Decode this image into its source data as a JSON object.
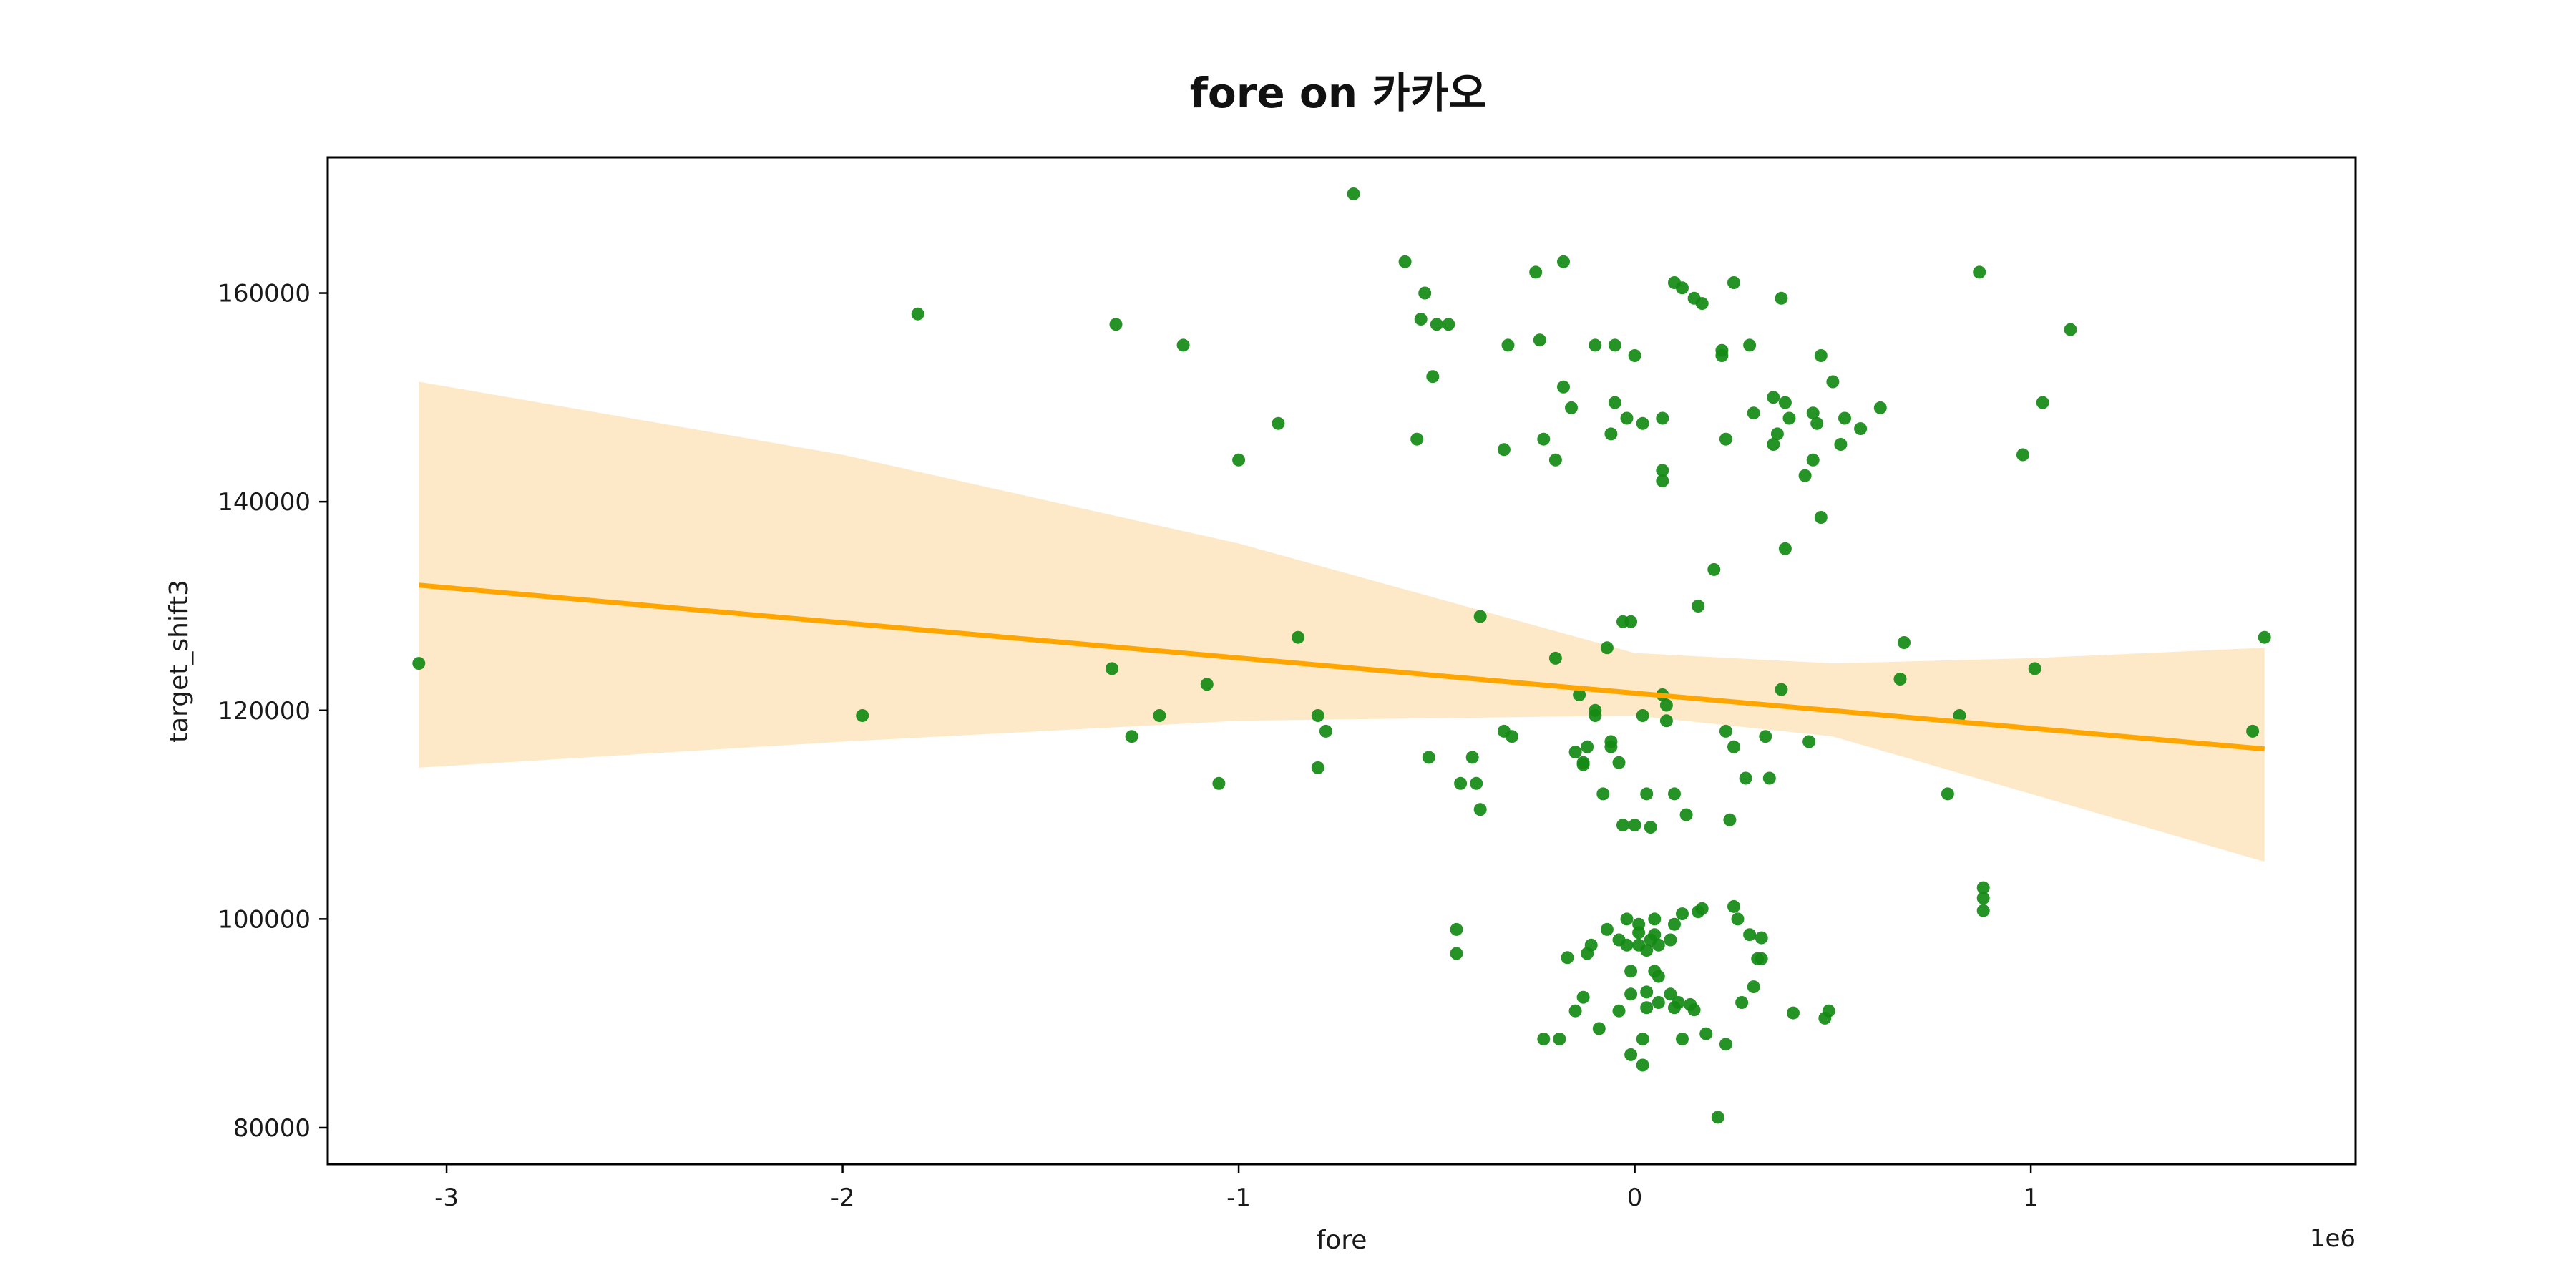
{
  "chart_data": {
    "type": "scatter",
    "title": "fore on 카카오",
    "xlabel": "fore",
    "ylabel": "target_shift3",
    "x_offset_text": "1e6",
    "xlim": [
      -3.3,
      1.82
    ],
    "ylim": [
      76500,
      173000
    ],
    "x_ticks": [
      -3,
      -2,
      -1,
      0,
      1
    ],
    "x_tick_labels": [
      "-3",
      "-2",
      "-1",
      "0",
      "1"
    ],
    "y_ticks": [
      80000,
      100000,
      120000,
      140000,
      160000
    ],
    "y_tick_labels": [
      "80000",
      "100000",
      "120000",
      "140000",
      "160000"
    ],
    "grid": false,
    "legend": "none",
    "colors": {
      "points": "#138a13",
      "line": "#ffa500",
      "band": "#fde9c8"
    },
    "regression": {
      "x": [
        -3.07,
        1.59
      ],
      "y": [
        132000,
        116300
      ],
      "ci_upper": [
        [
          -3.07,
          151500
        ],
        [
          -2.0,
          144500
        ],
        [
          -1.0,
          136000
        ],
        [
          0.0,
          125500
        ],
        [
          0.5,
          124500
        ],
        [
          1.0,
          125000
        ],
        [
          1.59,
          126000
        ]
      ],
      "ci_lower": [
        [
          -3.07,
          114500
        ],
        [
          -2.0,
          117000
        ],
        [
          -1.0,
          119000
        ],
        [
          0.0,
          119500
        ],
        [
          0.5,
          117500
        ],
        [
          1.0,
          112000
        ],
        [
          1.59,
          105500
        ]
      ]
    },
    "series": [
      {
        "points": [
          [
            -3.07,
            124500
          ],
          [
            -1.95,
            119500
          ],
          [
            -1.81,
            158000
          ],
          [
            -1.32,
            124000
          ],
          [
            -1.31,
            157000
          ],
          [
            -1.27,
            117500
          ],
          [
            -1.2,
            119500
          ],
          [
            -1.14,
            155000
          ],
          [
            -1.08,
            122500
          ],
          [
            -1.05,
            113000
          ],
          [
            -1.0,
            144000
          ],
          [
            -0.9,
            147500
          ],
          [
            -0.85,
            127000
          ],
          [
            -0.8,
            119500
          ],
          [
            -0.8,
            114500
          ],
          [
            -0.78,
            118000
          ],
          [
            -0.71,
            169500
          ],
          [
            -0.58,
            163000
          ],
          [
            -0.55,
            146000
          ],
          [
            -0.54,
            157500
          ],
          [
            -0.53,
            160000
          ],
          [
            -0.52,
            115500
          ],
          [
            -0.51,
            152000
          ],
          [
            -0.5,
            157000
          ],
          [
            -0.47,
            157000
          ],
          [
            -0.45,
            99000
          ],
          [
            -0.45,
            96700
          ],
          [
            -0.44,
            113000
          ],
          [
            -0.41,
            115500
          ],
          [
            -0.4,
            113000
          ],
          [
            -0.39,
            110500
          ],
          [
            -0.39,
            129000
          ],
          [
            -0.33,
            145000
          ],
          [
            -0.32,
            155000
          ],
          [
            -0.33,
            118000
          ],
          [
            -0.31,
            117500
          ],
          [
            -0.25,
            162000
          ],
          [
            -0.24,
            155500
          ],
          [
            -0.23,
            146000
          ],
          [
            -0.23,
            88500
          ],
          [
            -0.2,
            125000
          ],
          [
            -0.2,
            144000
          ],
          [
            -0.18,
            163000
          ],
          [
            -0.18,
            151000
          ],
          [
            -0.19,
            88500
          ],
          [
            -0.16,
            149000
          ],
          [
            -0.17,
            96300
          ],
          [
            -0.15,
            91200
          ],
          [
            -0.14,
            121500
          ],
          [
            -0.15,
            116000
          ],
          [
            -0.13,
            115000
          ],
          [
            -0.13,
            92500
          ],
          [
            -0.12,
            96700
          ],
          [
            -0.11,
            97500
          ],
          [
            -0.13,
            114800
          ],
          [
            -0.12,
            116500
          ],
          [
            -0.1,
            119500
          ],
          [
            -0.1,
            120000
          ],
          [
            -0.1,
            155000
          ],
          [
            -0.09,
            89500
          ],
          [
            -0.08,
            112000
          ],
          [
            -0.07,
            126000
          ],
          [
            -0.07,
            99000
          ],
          [
            -0.06,
            116500
          ],
          [
            -0.06,
            117000
          ],
          [
            -0.06,
            146500
          ],
          [
            -0.05,
            155000
          ],
          [
            -0.05,
            149500
          ],
          [
            -0.04,
            98000
          ],
          [
            -0.04,
            91200
          ],
          [
            -0.04,
            115000
          ],
          [
            -0.03,
            109000
          ],
          [
            -0.03,
            128500
          ],
          [
            -0.02,
            100000
          ],
          [
            -0.02,
            97500
          ],
          [
            -0.02,
            148000
          ],
          [
            -0.01,
            128500
          ],
          [
            -0.01,
            87000
          ],
          [
            -0.01,
            92800
          ],
          [
            -0.01,
            95000
          ],
          [
            0.0,
            154000
          ],
          [
            0.0,
            109000
          ],
          [
            0.01,
            98700
          ],
          [
            0.01,
            99500
          ],
          [
            0.01,
            97500
          ],
          [
            0.02,
            147500
          ],
          [
            0.02,
            119500
          ],
          [
            0.02,
            88500
          ],
          [
            0.02,
            86000
          ],
          [
            0.03,
            97000
          ],
          [
            0.03,
            93000
          ],
          [
            0.03,
            91500
          ],
          [
            0.03,
            112000
          ],
          [
            0.04,
            108800
          ],
          [
            0.04,
            98000
          ],
          [
            0.05,
            100000
          ],
          [
            0.05,
            95000
          ],
          [
            0.05,
            98500
          ],
          [
            0.06,
            94500
          ],
          [
            0.06,
            92000
          ],
          [
            0.06,
            97500
          ],
          [
            0.07,
            121500
          ],
          [
            0.07,
            148000
          ],
          [
            0.07,
            142000
          ],
          [
            0.07,
            143000
          ],
          [
            0.08,
            120500
          ],
          [
            0.08,
            119000
          ],
          [
            0.09,
            92800
          ],
          [
            0.09,
            98000
          ],
          [
            0.1,
            112000
          ],
          [
            0.1,
            99500
          ],
          [
            0.1,
            161000
          ],
          [
            0.1,
            91500
          ],
          [
            0.11,
            92000
          ],
          [
            0.12,
            100500
          ],
          [
            0.12,
            88500
          ],
          [
            0.12,
            160500
          ],
          [
            0.13,
            110000
          ],
          [
            0.14,
            91800
          ],
          [
            0.15,
            91300
          ],
          [
            0.15,
            159500
          ],
          [
            0.16,
            100700
          ],
          [
            0.16,
            130000
          ],
          [
            0.17,
            159000
          ],
          [
            0.17,
            101000
          ],
          [
            0.18,
            89000
          ],
          [
            0.2,
            133500
          ],
          [
            0.21,
            81000
          ],
          [
            0.22,
            154500
          ],
          [
            0.22,
            154000
          ],
          [
            0.23,
            146000
          ],
          [
            0.23,
            88000
          ],
          [
            0.23,
            118000
          ],
          [
            0.24,
            109500
          ],
          [
            0.25,
            116500
          ],
          [
            0.25,
            161000
          ],
          [
            0.25,
            101200
          ],
          [
            0.26,
            100000
          ],
          [
            0.27,
            92000
          ],
          [
            0.28,
            113500
          ],
          [
            0.29,
            155000
          ],
          [
            0.29,
            98500
          ],
          [
            0.3,
            93500
          ],
          [
            0.3,
            148500
          ],
          [
            0.31,
            96200
          ],
          [
            0.32,
            98200
          ],
          [
            0.32,
            96200
          ],
          [
            0.33,
            117500
          ],
          [
            0.34,
            113500
          ],
          [
            0.35,
            150000
          ],
          [
            0.35,
            145500
          ],
          [
            0.36,
            146500
          ],
          [
            0.37,
            122000
          ],
          [
            0.37,
            159500
          ],
          [
            0.38,
            135500
          ],
          [
            0.38,
            149500
          ],
          [
            0.39,
            148000
          ],
          [
            0.4,
            91000
          ],
          [
            0.43,
            142500
          ],
          [
            0.44,
            117000
          ],
          [
            0.45,
            148500
          ],
          [
            0.45,
            144000
          ],
          [
            0.46,
            147500
          ],
          [
            0.47,
            138500
          ],
          [
            0.47,
            154000
          ],
          [
            0.48,
            90500
          ],
          [
            0.49,
            91200
          ],
          [
            0.5,
            151500
          ],
          [
            0.52,
            145500
          ],
          [
            0.53,
            148000
          ],
          [
            0.57,
            147000
          ],
          [
            0.62,
            149000
          ],
          [
            0.67,
            123000
          ],
          [
            0.68,
            126500
          ],
          [
            0.79,
            112000
          ],
          [
            0.82,
            119500
          ],
          [
            0.87,
            162000
          ],
          [
            0.88,
            103000
          ],
          [
            0.88,
            102000
          ],
          [
            0.88,
            100800
          ],
          [
            0.98,
            144500
          ],
          [
            1.01,
            124000
          ],
          [
            1.03,
            149500
          ],
          [
            1.1,
            156500
          ],
          [
            1.56,
            118000
          ],
          [
            1.59,
            127000
          ]
        ]
      }
    ]
  }
}
